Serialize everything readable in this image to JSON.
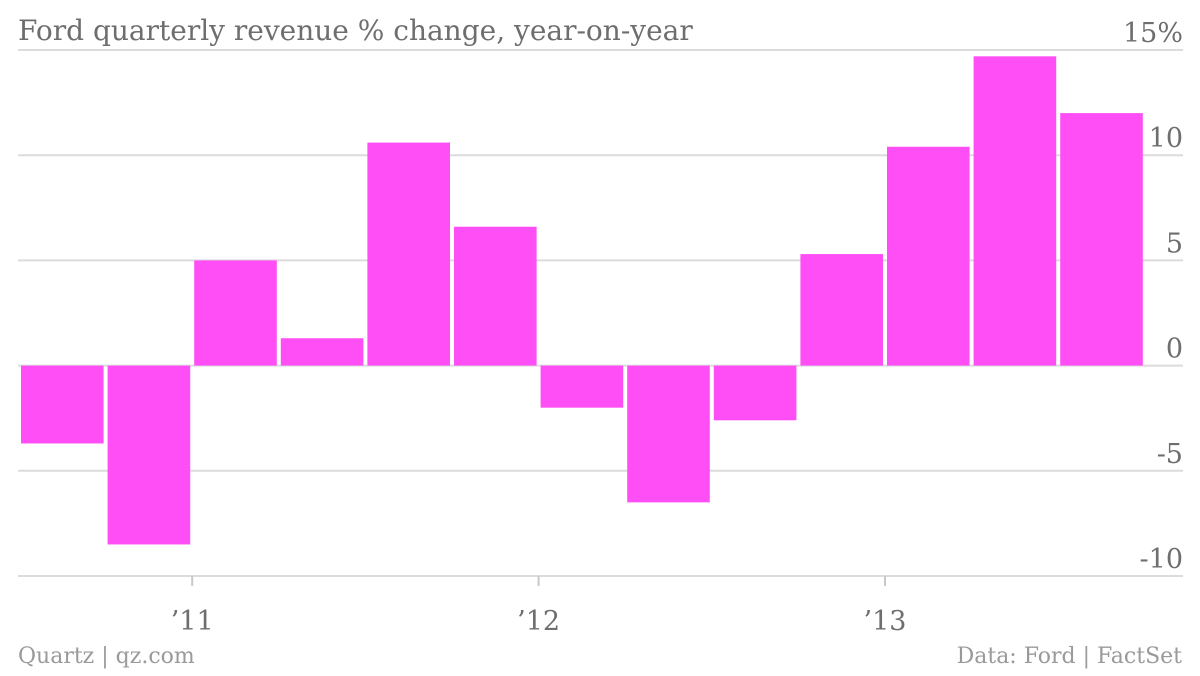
{
  "footer": {
    "source": "Quartz | qz.com",
    "data_credit": "Data: Ford | FactSet"
  },
  "colors": {
    "bar": "#ff4ef5",
    "grid": "#dcdcdc",
    "text": "#6e6e6e"
  },
  "chart_data": {
    "type": "bar",
    "title": "Ford quarterly revenue % change, year-on-year",
    "xlabel": "",
    "ylabel": "",
    "unit": "%",
    "y_axis_side": "right",
    "ylim": [
      -10,
      15
    ],
    "yticks": [
      {
        "value": 15,
        "label": "15%"
      },
      {
        "value": 10,
        "label": "10"
      },
      {
        "value": 5,
        "label": "5"
      },
      {
        "value": 0,
        "label": "0"
      },
      {
        "value": -5,
        "label": "-5"
      },
      {
        "value": -10,
        "label": "-10"
      }
    ],
    "categories": [
      "Q3 2010",
      "Q4 2010",
      "Q1 2011",
      "Q2 2011",
      "Q3 2011",
      "Q4 2011",
      "Q1 2012",
      "Q2 2012",
      "Q3 2012",
      "Q4 2012",
      "Q1 2013",
      "Q2 2013",
      "Q3 2013"
    ],
    "values": [
      -3.7,
      -8.5,
      5.0,
      1.3,
      10.6,
      6.6,
      -2.0,
      -6.5,
      -2.6,
      5.3,
      10.4,
      14.7,
      12.0
    ],
    "xticks": [
      {
        "index": 1.5,
        "label": "’11"
      },
      {
        "index": 5.5,
        "label": "’12"
      },
      {
        "index": 9.5,
        "label": "’13"
      }
    ],
    "grid": true,
    "legend": "none"
  }
}
